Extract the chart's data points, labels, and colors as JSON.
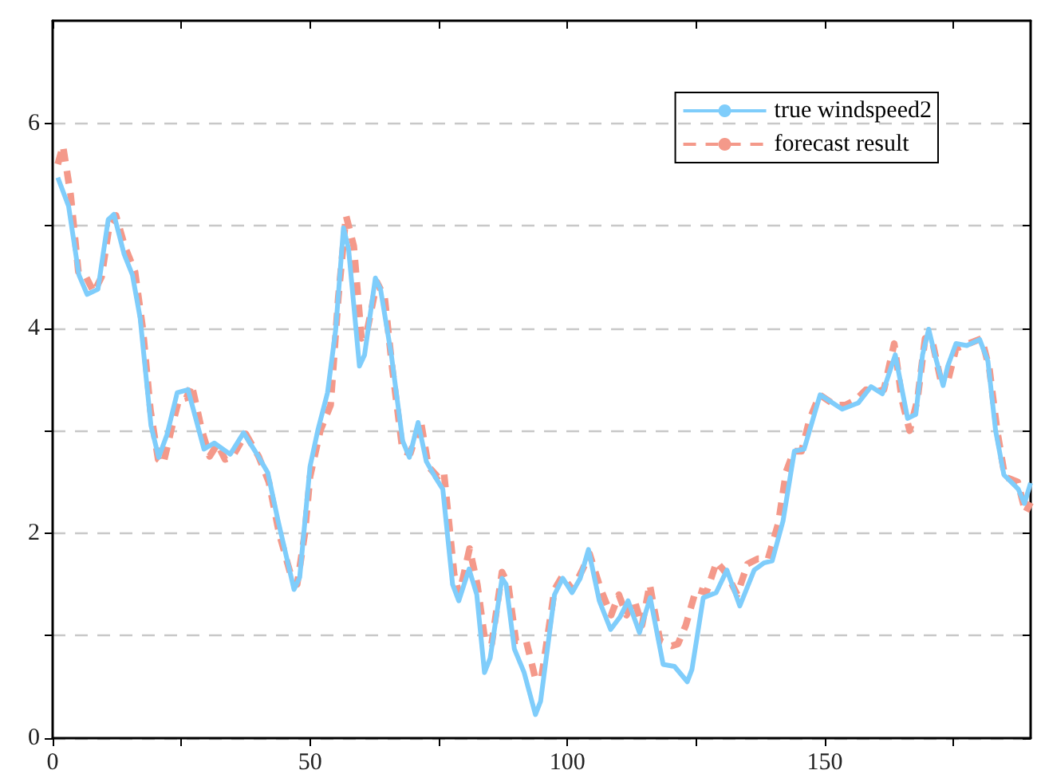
{
  "chart_data": {
    "type": "line",
    "xlim": [
      0,
      190
    ],
    "ylim": [
      0,
      7
    ],
    "xticks": [
      0,
      {
        "value": 25,
        "label": null
      },
      50,
      {
        "value": 75,
        "label": null
      },
      100,
      {
        "value": 125,
        "label": null
      },
      150,
      {
        "value": 175,
        "label": null
      }
    ],
    "yticks": [
      0,
      {
        "value": 1,
        "label": null
      },
      2,
      {
        "value": 3,
        "label": null
      },
      4,
      {
        "value": 5,
        "label": null
      },
      6
    ],
    "grid": "y",
    "legend": "top right",
    "marker": "none",
    "series": [
      {
        "name": "true windspeed2",
        "color": "#7fcdfb",
        "line_style": "solid",
        "x": [
          1,
          3.1,
          5.1,
          6.7,
          8.8,
          10.8,
          11.9,
          13.9,
          15.5,
          17,
          19.1,
          20.6,
          22.2,
          24.2,
          26.3,
          29.4,
          31.4,
          34.5,
          37.1,
          39.7,
          41.8,
          43.8,
          46.9,
          48,
          50,
          51.5,
          53.4,
          55,
          56.5,
          57.5,
          59.6,
          60.6,
          62.7,
          63.7,
          65.8,
          68,
          69.3,
          71,
          72.6,
          74.4,
          75.8,
          77.7,
          78.9,
          80.9,
          82.4,
          83.9,
          85,
          87.3,
          88.1,
          89.7,
          91.6,
          93.8,
          94.8,
          97.5,
          99.1,
          100.9,
          102.5,
          104.1,
          106.2,
          108.4,
          110.2,
          111.8,
          114,
          116.1,
          118.6,
          120.8,
          123.3,
          124.2,
          126.4,
          128.9,
          131,
          133.5,
          136.3,
          138.2,
          139.8,
          141.9,
          144.1,
          146,
          149.1,
          153.4,
          156.5,
          159,
          161.2,
          163.7,
          166.1,
          167.7,
          169,
          170.2,
          171.4,
          173,
          173.9,
          175.5,
          177.6,
          180.1,
          181.7,
          183.2,
          184.8,
          187.6,
          188.8,
          190
        ],
        "values": [
          5.47,
          5.19,
          4.52,
          4.33,
          4.38,
          5.06,
          5.11,
          4.72,
          4.52,
          4.1,
          3.05,
          2.74,
          2.96,
          3.37,
          3.4,
          2.82,
          2.88,
          2.77,
          2.98,
          2.77,
          2.59,
          2.12,
          1.45,
          1.57,
          2.65,
          3.0,
          3.37,
          3.99,
          4.98,
          4.77,
          3.63,
          3.74,
          4.49,
          4.38,
          3.74,
          2.9,
          2.74,
          3.08,
          2.7,
          2.54,
          2.43,
          1.5,
          1.34,
          1.65,
          1.4,
          0.64,
          0.78,
          1.56,
          1.5,
          0.87,
          0.64,
          0.23,
          0.36,
          1.4,
          1.56,
          1.42,
          1.56,
          1.84,
          1.34,
          1.06,
          1.18,
          1.34,
          1.03,
          1.37,
          0.72,
          0.7,
          0.55,
          0.67,
          1.37,
          1.42,
          1.64,
          1.29,
          1.64,
          1.71,
          1.73,
          2.12,
          2.8,
          2.82,
          3.35,
          3.21,
          3.27,
          3.43,
          3.36,
          3.74,
          3.12,
          3.16,
          3.74,
          3.99,
          3.74,
          3.44,
          3.63,
          3.85,
          3.83,
          3.89,
          3.68,
          3.0,
          2.57,
          2.43,
          2.29,
          2.49
        ]
      },
      {
        "name": "forecast result",
        "color": "#f4998a",
        "line_style": "dashed",
        "x": [
          1,
          2,
          3.5,
          5,
          6.5,
          8,
          9.5,
          11,
          12.3,
          14,
          16,
          17.5,
          19,
          20.5,
          21.5,
          23,
          24.5,
          26,
          27,
          29,
          30.5,
          32,
          33.5,
          35,
          37.5,
          40,
          42,
          44,
          46.5,
          47.5,
          49,
          50,
          52,
          54,
          55.5,
          57,
          58.5,
          60,
          61,
          63,
          64.5,
          66,
          68,
          69.5,
          71.5,
          73,
          74.8,
          76,
          78,
          79,
          81,
          82.5,
          84,
          85.3,
          87.3,
          88.5,
          90,
          92,
          93.8,
          95,
          97.5,
          99,
          101,
          103,
          104.3,
          106.5,
          108.5,
          110,
          111.5,
          113,
          114.5,
          116,
          118,
          120.3,
          121.5,
          123,
          125,
          127,
          129,
          131,
          133,
          135,
          137,
          139,
          141,
          142.5,
          144,
          145.5,
          147,
          149,
          152,
          154,
          156,
          158,
          160,
          161.5,
          163.5,
          165,
          166.5,
          168,
          169.5,
          171,
          172.5,
          174,
          175.5,
          178,
          180.5,
          182,
          183.5,
          185,
          187.5,
          189,
          190
        ],
        "values": [
          5.6,
          5.78,
          5.3,
          4.55,
          4.5,
          4.35,
          4.5,
          5.0,
          5.1,
          4.8,
          4.55,
          4.0,
          3.2,
          2.72,
          2.68,
          3.0,
          3.3,
          3.32,
          3.45,
          3.0,
          2.75,
          2.87,
          2.72,
          2.75,
          2.97,
          2.75,
          2.5,
          2.0,
          1.55,
          1.5,
          2.0,
          2.55,
          3.0,
          3.25,
          4.3,
          5.1,
          4.8,
          3.9,
          3.95,
          4.45,
          4.3,
          3.6,
          2.8,
          2.78,
          3.1,
          2.65,
          2.55,
          2.6,
          1.6,
          1.4,
          1.85,
          1.5,
          0.95,
          0.92,
          1.62,
          1.5,
          0.95,
          0.95,
          0.58,
          0.6,
          1.45,
          1.58,
          1.45,
          1.65,
          1.8,
          1.45,
          1.2,
          1.4,
          1.2,
          1.35,
          1.1,
          1.5,
          0.95,
          0.9,
          0.92,
          1.1,
          1.45,
          1.42,
          1.72,
          1.6,
          1.4,
          1.7,
          1.75,
          1.75,
          2.1,
          2.6,
          2.8,
          2.8,
          3.1,
          3.35,
          3.25,
          3.25,
          3.3,
          3.4,
          3.38,
          3.4,
          3.85,
          3.3,
          3.0,
          3.3,
          3.9,
          3.85,
          3.5,
          3.5,
          3.8,
          3.85,
          3.9,
          3.6,
          3.0,
          2.55,
          2.5,
          2.2,
          2.3
        ]
      }
    ]
  }
}
